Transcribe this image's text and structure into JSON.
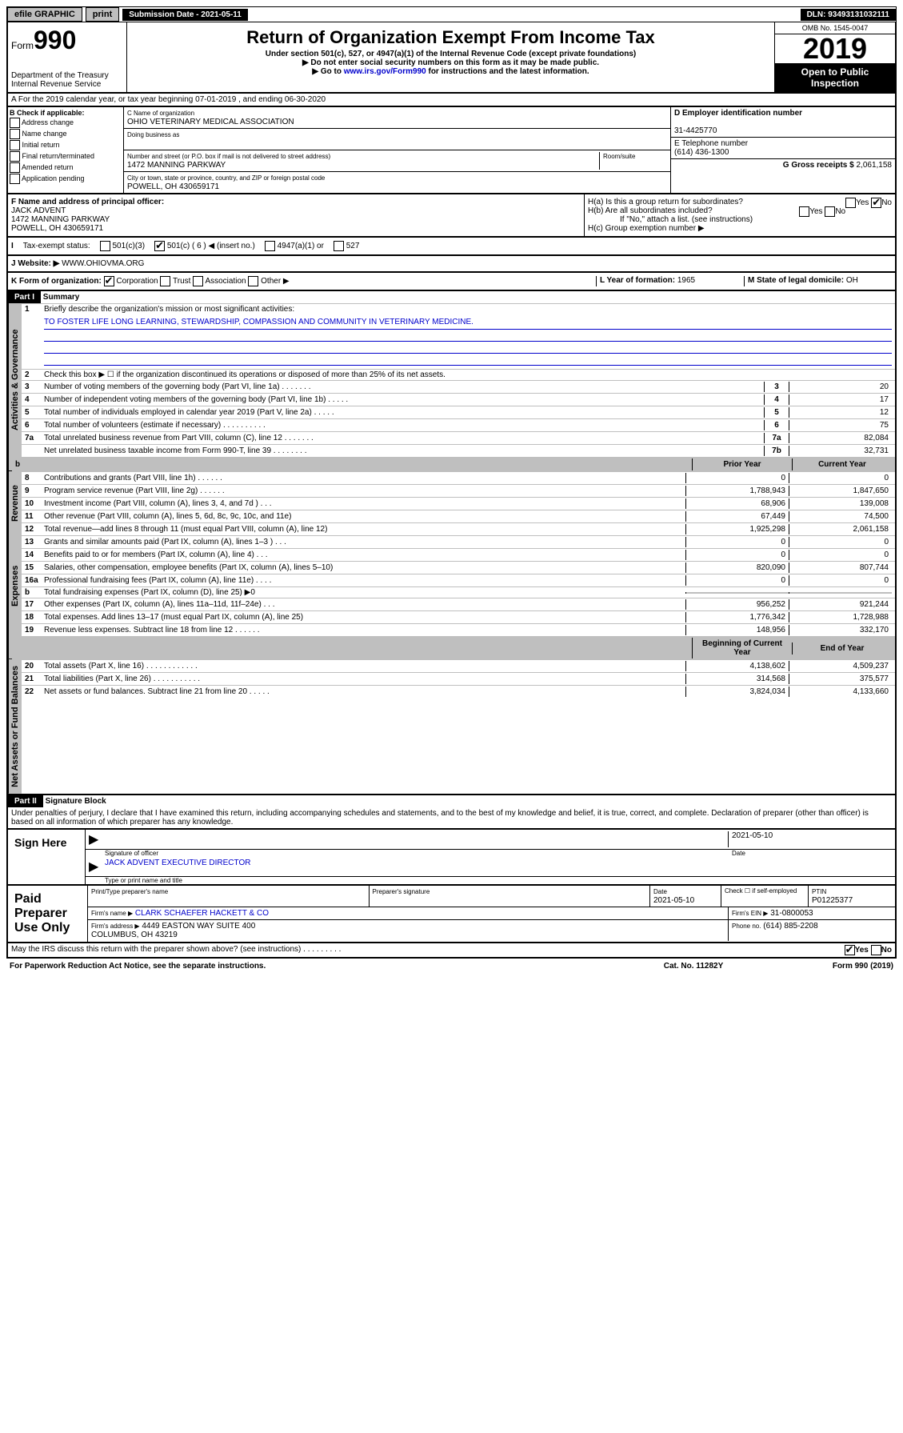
{
  "topbar": {
    "efile": "efile GRAPHIC",
    "print": "print",
    "sub_label": "Submission Date - 2021-05-11",
    "dln": "DLN: 93493131032111"
  },
  "header": {
    "form": "Form",
    "num": "990",
    "dept": "Department of the Treasury\nInternal Revenue Service",
    "title": "Return of Organization Exempt From Income Tax",
    "sub1": "Under section 501(c), 527, or 4947(a)(1) of the Internal Revenue Code (except private foundations)",
    "sub2": "▶ Do not enter social security numbers on this form as it may be made public.",
    "sub3": "▶ Go to www.irs.gov/Form990 for instructions and the latest information.",
    "link": "www.irs.gov/Form990",
    "omb": "OMB No. 1545-0047",
    "year": "2019",
    "otp": "Open to Public Inspection"
  },
  "rowA": "A For the 2019 calendar year, or tax year beginning 07-01-2019    , and ending 06-30-2020",
  "boxB": {
    "label": "B Check if applicable:",
    "opts": [
      "Address change",
      "Name change",
      "Initial return",
      "Final return/terminated",
      "Amended return",
      "Application pending"
    ]
  },
  "boxC": {
    "name_label": "C Name of organization",
    "name": "OHIO VETERINARY MEDICAL ASSOCIATION",
    "dba_label": "Doing business as",
    "addr_label": "Number and street (or P.O. box if mail is not delivered to street address)",
    "room_label": "Room/suite",
    "addr": "1472 MANNING PARKWAY",
    "city_label": "City or town, state or province, country, and ZIP or foreign postal code",
    "city": "POWELL, OH  430659171"
  },
  "boxD": {
    "label": "D Employer identification number",
    "val": "31-4425770"
  },
  "boxE": {
    "label": "E Telephone number",
    "val": "(614) 436-1300"
  },
  "boxG": {
    "label": "G Gross receipts $",
    "val": "2,061,158"
  },
  "boxF": {
    "label": "F Name and address of principal officer:",
    "name": "JACK ADVENT",
    "addr1": "1472 MANNING PARKWAY",
    "addr2": "POWELL, OH  430659171"
  },
  "boxH": {
    "a": "H(a)  Is this a group return for subordinates?",
    "b": "H(b)  Are all subordinates included?",
    "b2": "If \"No,\" attach a list. (see instructions)",
    "c": "H(c)  Group exemption number ▶"
  },
  "taxStatus": {
    "label": "Tax-exempt status:",
    "c6": "501(c) ( 6 ) ◀ (insert no.)",
    "c3": "501(c)(3)",
    "a1": "4947(a)(1) or",
    "s527": "527"
  },
  "website": {
    "label": "J Website: ▶",
    "val": "WWW.OHIOVMA.ORG"
  },
  "boxK": "K Form of organization:",
  "kOpts": [
    "Corporation",
    "Trust",
    "Association",
    "Other ▶"
  ],
  "boxL": {
    "label": "L Year of formation:",
    "val": "1965"
  },
  "boxM": {
    "label": "M State of legal domicile:",
    "val": "OH"
  },
  "part1": {
    "title": "Part I",
    "name": "Summary",
    "side_gov": "Activities & Governance",
    "side_rev": "Revenue",
    "side_exp": "Expenses",
    "side_net": "Net Assets or Fund Balances",
    "l1": "Briefly describe the organization's mission or most significant activities:",
    "mission": "TO FOSTER LIFE LONG LEARNING, STEWARDSHIP, COMPASSION AND COMMUNITY IN VETERINARY MEDICINE.",
    "l2": "Check this box ▶ ☐ if the organization discontinued its operations or disposed of more than 25% of its net assets.",
    "lines_single": [
      {
        "n": "3",
        "t": "Number of voting members of the governing body (Part VI, line 1a)  .    .    .    .    .    .    .",
        "b": "3",
        "v": "20"
      },
      {
        "n": "4",
        "t": "Number of independent voting members of the governing body (Part VI, line 1b)  .    .    .    .    .",
        "b": "4",
        "v": "17"
      },
      {
        "n": "5",
        "t": "Total number of individuals employed in calendar year 2019 (Part V, line 2a)  .    .    .    .    .",
        "b": "5",
        "v": "12"
      },
      {
        "n": "6",
        "t": "Total number of volunteers (estimate if necessary)  .    .    .    .    .    .    .    .    .    .",
        "b": "6",
        "v": "75"
      },
      {
        "n": "7a",
        "t": "Total unrelated business revenue from Part VIII, column (C), line 12  .    .    .    .    .    .    .",
        "b": "7a",
        "v": "82,084"
      },
      {
        "n": "",
        "t": "Net unrelated business taxable income from Form 990-T, line 39  .    .    .    .    .    .    .    .",
        "b": "7b",
        "v": "32,731"
      }
    ],
    "hdr_prior": "Prior Year",
    "hdr_curr": "Current Year",
    "revenue": [
      {
        "n": "8",
        "t": "Contributions and grants (Part VIII, line 1h)  .    .    .    .    .    .",
        "p": "0",
        "c": "0"
      },
      {
        "n": "9",
        "t": "Program service revenue (Part VIII, line 2g)  .    .    .    .    .    .",
        "p": "1,788,943",
        "c": "1,847,650"
      },
      {
        "n": "10",
        "t": "Investment income (Part VIII, column (A), lines 3, 4, and 7d )  .    .    .",
        "p": "68,906",
        "c": "139,008"
      },
      {
        "n": "11",
        "t": "Other revenue (Part VIII, column (A), lines 5, 6d, 8c, 9c, 10c, and 11e)",
        "p": "67,449",
        "c": "74,500"
      },
      {
        "n": "12",
        "t": "Total revenue—add lines 8 through 11 (must equal Part VIII, column (A), line 12)",
        "p": "1,925,298",
        "c": "2,061,158"
      }
    ],
    "expenses": [
      {
        "n": "13",
        "t": "Grants and similar amounts paid (Part IX, column (A), lines 1–3 )  .    .    .",
        "p": "0",
        "c": "0"
      },
      {
        "n": "14",
        "t": "Benefits paid to or for members (Part IX, column (A), line 4)  .    .    .",
        "p": "0",
        "c": "0"
      },
      {
        "n": "15",
        "t": "Salaries, other compensation, employee benefits (Part IX, column (A), lines 5–10)",
        "p": "820,090",
        "c": "807,744"
      },
      {
        "n": "16a",
        "t": "Professional fundraising fees (Part IX, column (A), line 11e)  .    .    .    .",
        "p": "0",
        "c": "0"
      }
    ],
    "l16b": "Total fundraising expenses (Part IX, column (D), line 25) ▶0",
    "expenses2": [
      {
        "n": "17",
        "t": "Other expenses (Part IX, column (A), lines 11a–11d, 11f–24e)  .    .    .",
        "p": "956,252",
        "c": "921,244"
      },
      {
        "n": "18",
        "t": "Total expenses. Add lines 13–17 (must equal Part IX, column (A), line 25)",
        "p": "1,776,342",
        "c": "1,728,988"
      },
      {
        "n": "19",
        "t": "Revenue less expenses. Subtract line 18 from line 12  .    .    .    .    .    .",
        "p": "148,956",
        "c": "332,170"
      }
    ],
    "hdr_beg": "Beginning of Current Year",
    "hdr_end": "End of Year",
    "net": [
      {
        "n": "20",
        "t": "Total assets (Part X, line 16)  .    .    .    .    .    .    .    .    .    .    .    .",
        "p": "4,138,602",
        "c": "4,509,237"
      },
      {
        "n": "21",
        "t": "Total liabilities (Part X, line 26)  .    .    .    .    .    .    .    .    .    .    .",
        "p": "314,568",
        "c": "375,577"
      },
      {
        "n": "22",
        "t": "Net assets or fund balances. Subtract line 21 from line 20  .    .    .    .    .",
        "p": "3,824,034",
        "c": "4,133,660"
      }
    ]
  },
  "part2": {
    "title": "Part II",
    "name": "Signature Block",
    "perjury": "Under penalties of perjury, I declare that I have examined this return, including accompanying schedules and statements, and to the best of my knowledge and belief, it is true, correct, and complete. Declaration of preparer (other than officer) is based on all information of which preparer has any knowledge.",
    "sign_here": "Sign Here",
    "sig_officer": "Signature of officer",
    "date": "2021-05-10",
    "date_label": "Date",
    "officer_name": "JACK ADVENT EXECUTIVE DIRECTOR",
    "type_name": "Type or print name and title",
    "paid": "Paid Preparer Use Only",
    "prep_name_label": "Print/Type preparer's name",
    "prep_sig_label": "Preparer's signature",
    "prep_date_label": "Date",
    "prep_date": "2021-05-10",
    "check_label": "Check ☐ if self-employed",
    "ptin_label": "PTIN",
    "ptin": "P01225377",
    "firm_name_label": "Firm's name    ▶",
    "firm_name": "CLARK SCHAEFER HACKETT & CO",
    "firm_ein_label": "Firm's EIN ▶",
    "firm_ein": "31-0800053",
    "firm_addr_label": "Firm's address ▶",
    "firm_addr": "4449 EASTON WAY SUITE 400\nCOLUMBUS, OH  43219",
    "phone_label": "Phone no.",
    "phone": "(614) 885-2208",
    "discuss": "May the IRS discuss this return with the preparer shown above? (see instructions)  .    .    .    .    .    .    .    .    .",
    "yes": "Yes",
    "no": "No"
  },
  "footer": {
    "pra": "For Paperwork Reduction Act Notice, see the separate instructions.",
    "cat": "Cat. No. 11282Y",
    "form": "Form 990 (2019)"
  }
}
